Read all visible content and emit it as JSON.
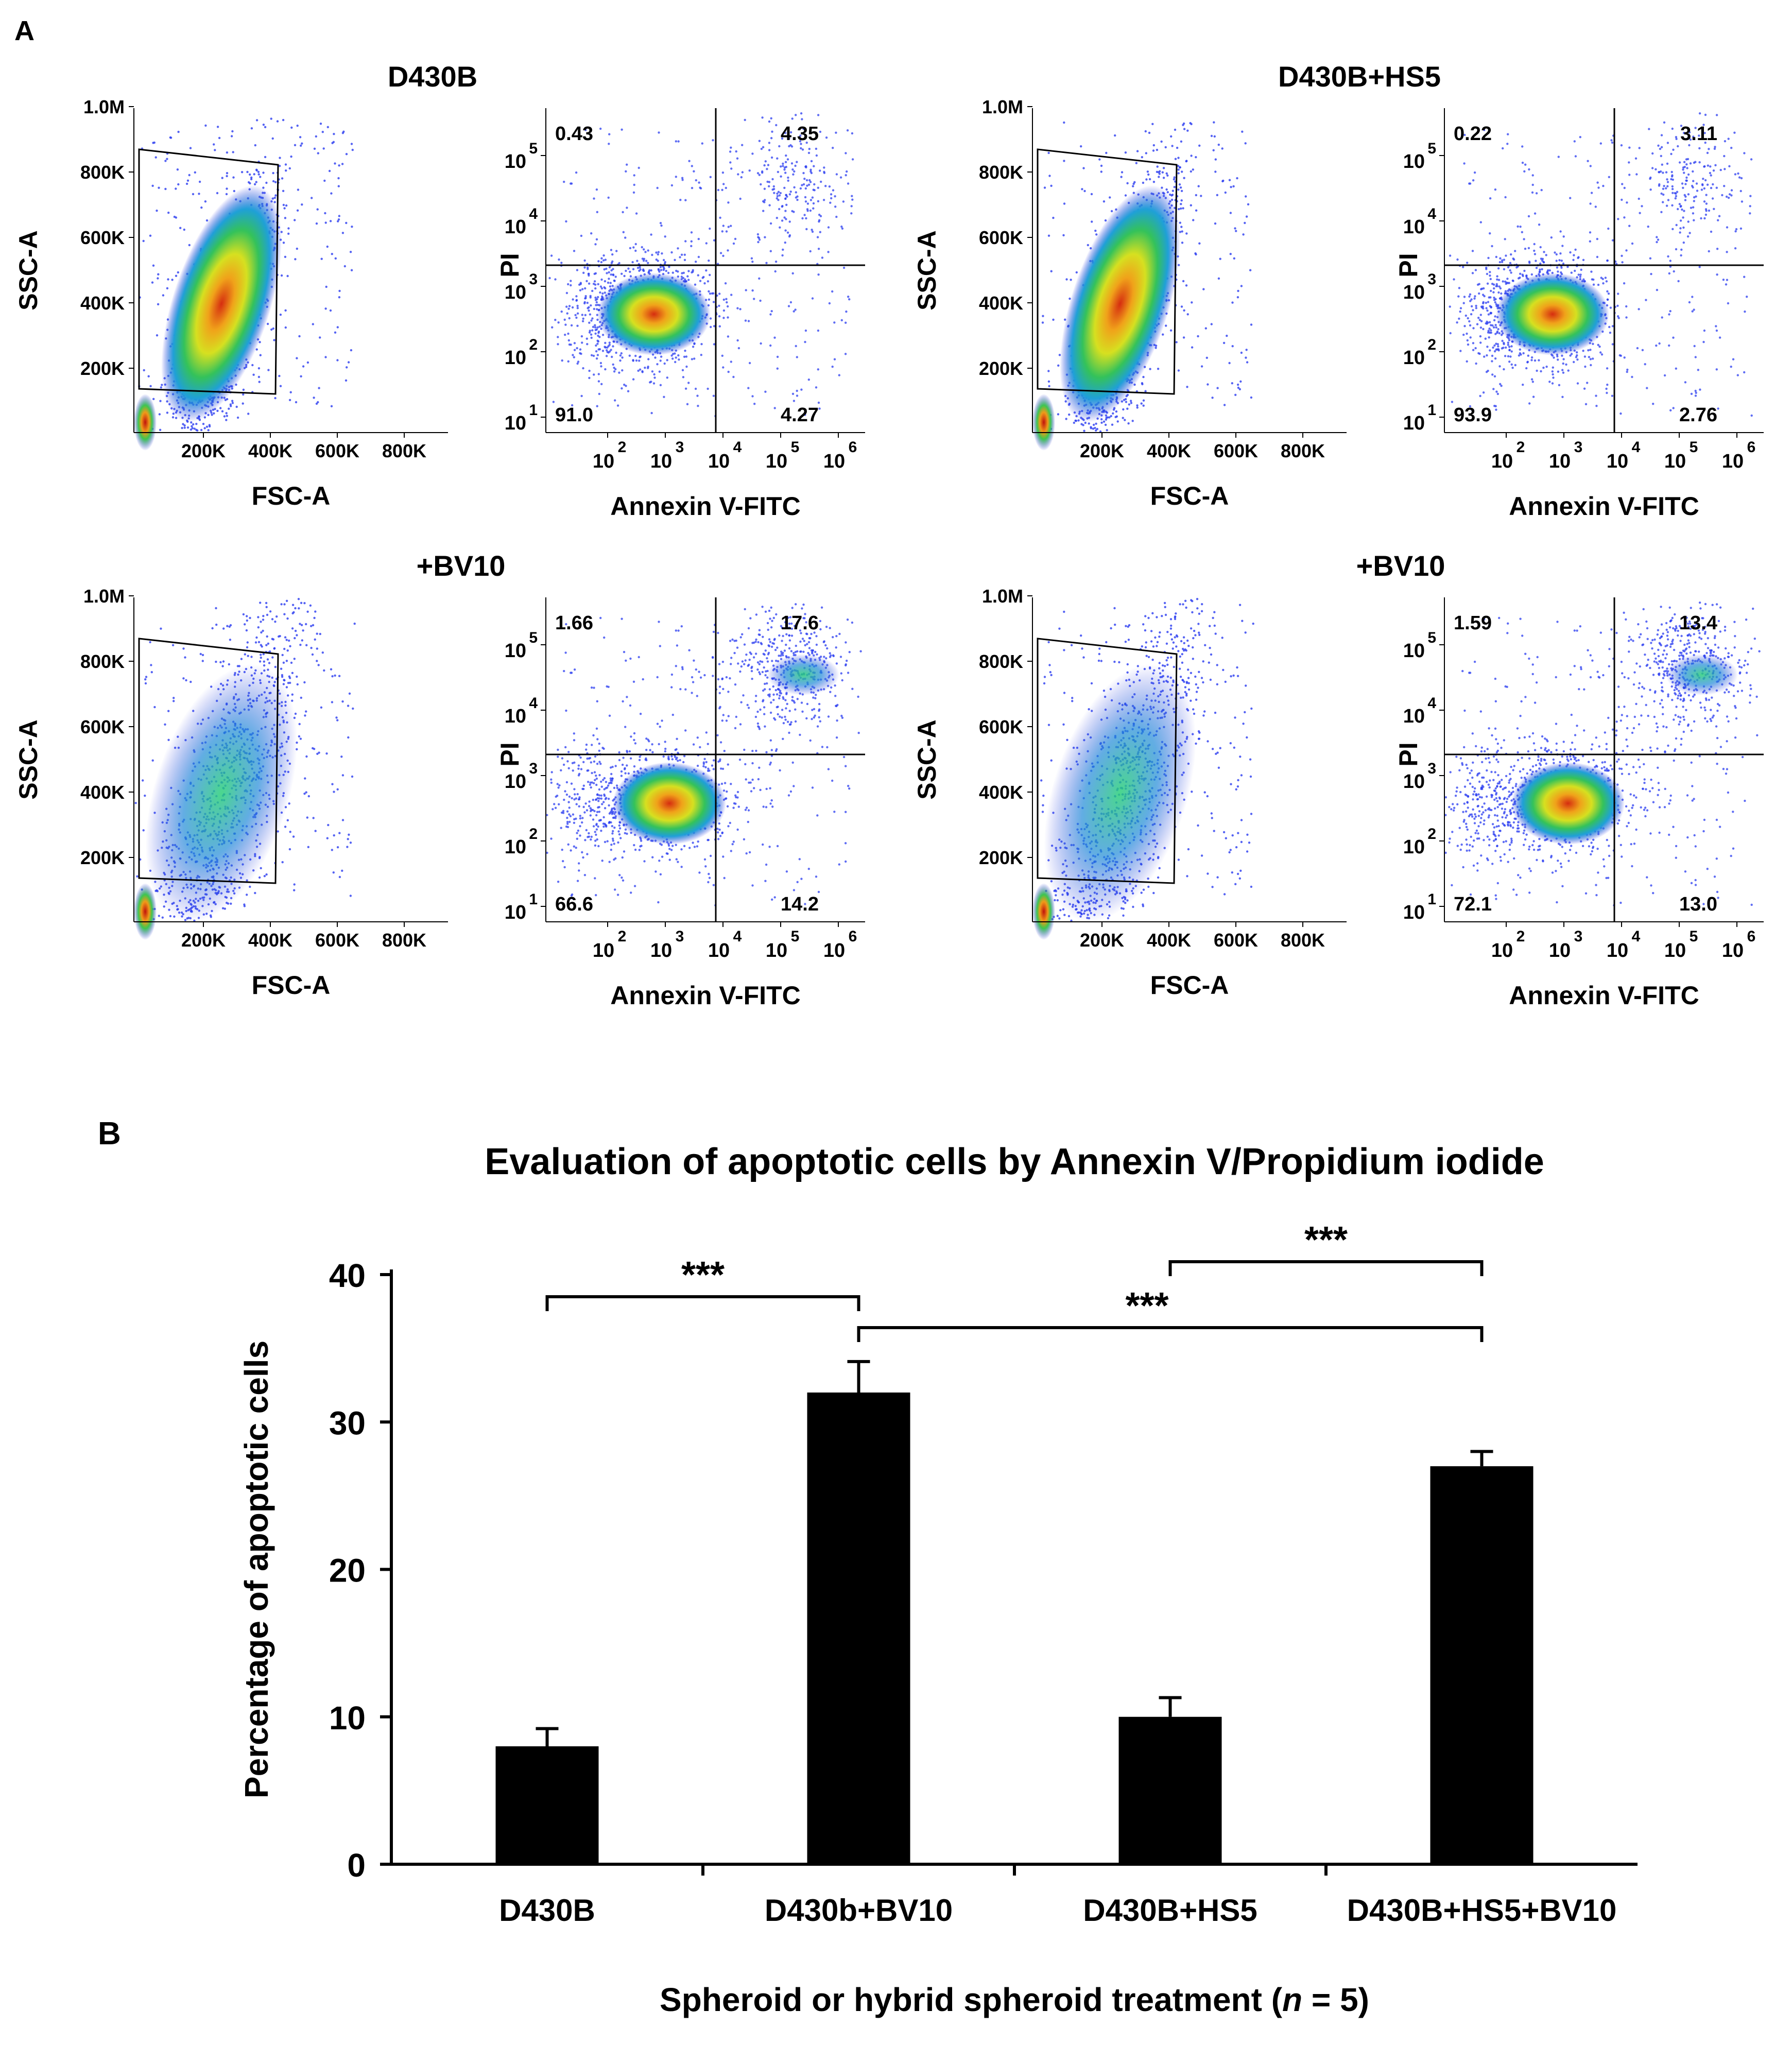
{
  "panel_labels": {
    "a": "A",
    "b": "B"
  },
  "panel_a": {
    "titles": [
      "D430B",
      "D430B+HS5",
      "+BV10",
      "+BV10"
    ],
    "scatter": {
      "x_ticks": [
        "200K",
        "400K",
        "600K",
        "800K"
      ],
      "y_ticks": [
        "200K",
        "400K",
        "600K",
        "800K",
        "1.0M"
      ],
      "x_label": "FSC-A",
      "y_label": "SSC-A"
    },
    "quadrant": {
      "x_label": "Annexin V-FITC",
      "y_label": "PI",
      "x_ticks": [
        "10",
        "10",
        "10",
        "10",
        "10"
      ],
      "x_ticks_exp": [
        "2",
        "3",
        "4",
        "5",
        "6"
      ],
      "y_ticks": [
        "10",
        "10",
        "10",
        "10",
        "10"
      ],
      "y_ticks_exp": [
        "1",
        "2",
        "3",
        "4",
        "5"
      ]
    },
    "quadrant_values": [
      {
        "ul": "0.43",
        "ur": "4.35",
        "ll": "91.0",
        "lr": "4.27"
      },
      {
        "ul": "0.22",
        "ur": "3.11",
        "ll": "93.9",
        "lr": "2.76"
      },
      {
        "ul": "1.66",
        "ur": "17.6",
        "ll": "66.6",
        "lr": "14.2"
      },
      {
        "ul": "1.59",
        "ur": "13.4",
        "ll": "72.1",
        "lr": "13.0"
      }
    ]
  },
  "chart_data": {
    "type": "bar",
    "title": "Evaluation of apoptotic cells by Annexin V/Propidium iodide",
    "xlabel": "Spheroid or hybrid spheroid treatment (n = 5)",
    "xlabel_parts": [
      "Spheroid or hybrid spheroid treatment (",
      "n",
      " = 5)"
    ],
    "ylabel": "Percentage of apoptotic cells",
    "categories": [
      "D430B",
      "D430b+BV10",
      "D430B+HS5",
      "D430B+HS5+BV10"
    ],
    "values": [
      8,
      32,
      10,
      27
    ],
    "errors": [
      1.2,
      2.1,
      1.3,
      1.0
    ],
    "ylim": [
      0,
      40
    ],
    "yticks": [
      0,
      10,
      20,
      30,
      40
    ],
    "significance": [
      {
        "from": 0,
        "to": 1,
        "label": "***"
      },
      {
        "from": 1,
        "to": 3,
        "label": "***"
      },
      {
        "from": 2,
        "to": 3,
        "label": "***"
      }
    ]
  },
  "colors": {
    "bar": "#000000",
    "density_low": "#1f2fd6",
    "density_high": "#d81b0d"
  }
}
